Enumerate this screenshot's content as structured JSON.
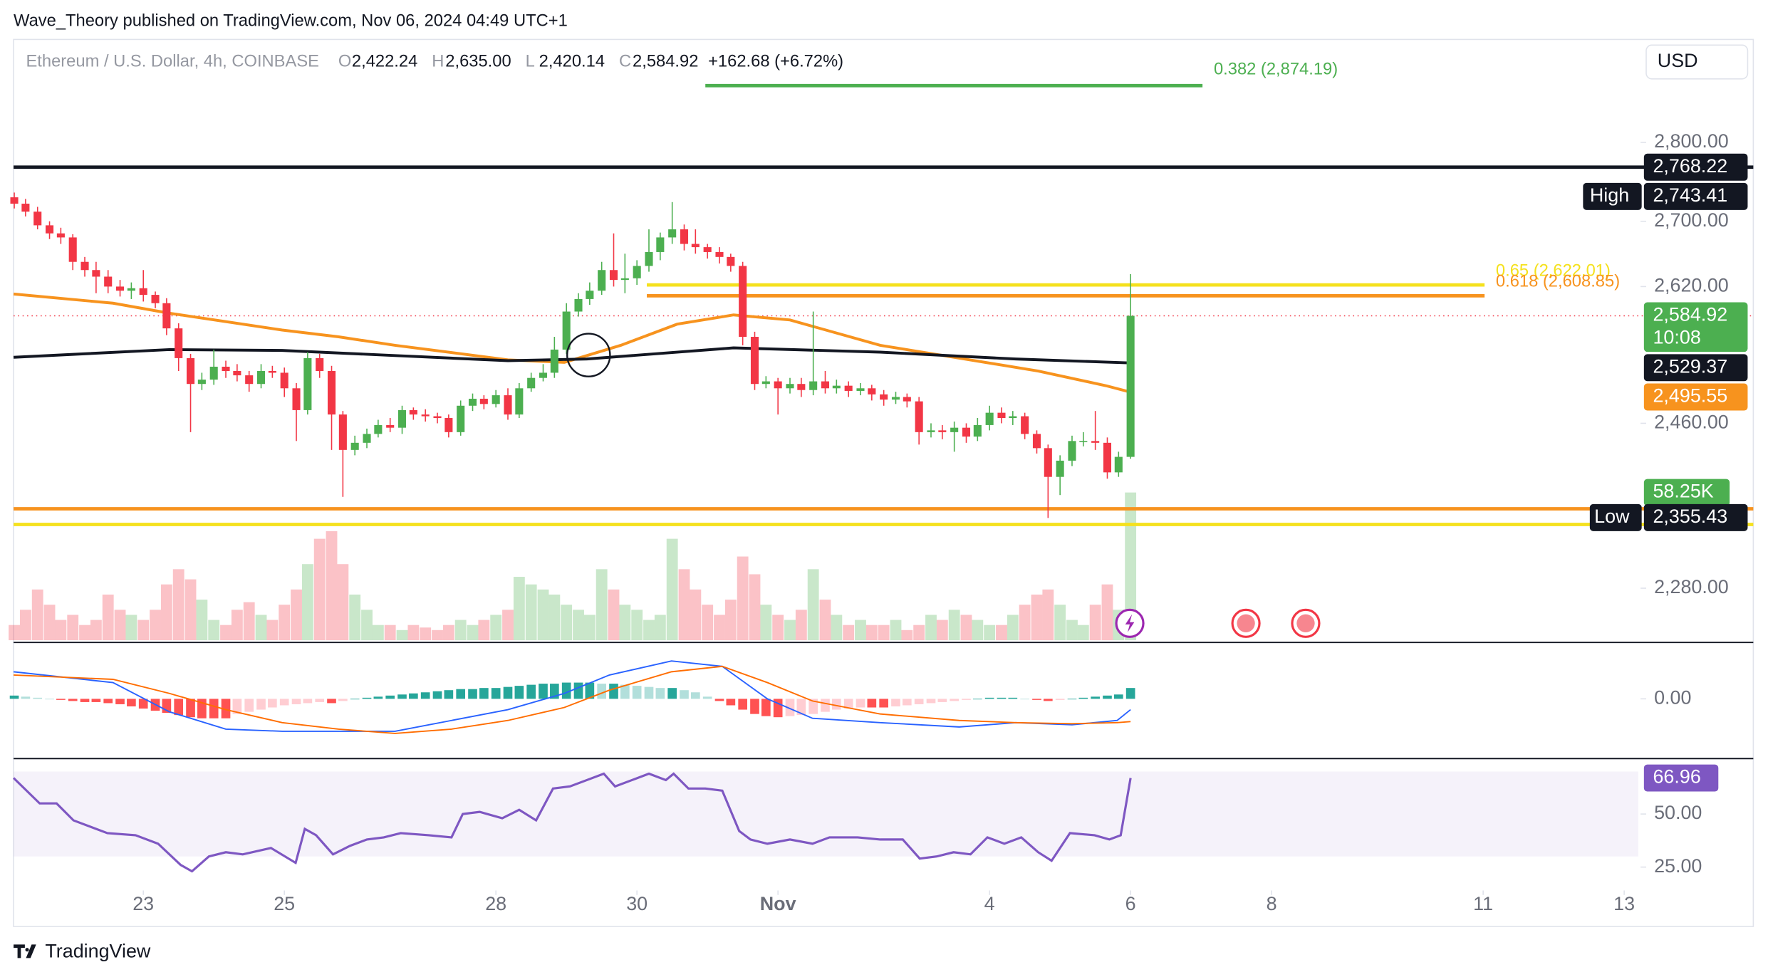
{
  "header": {
    "publisher": "Wave_Theory published on TradingView.com, Nov 06, 2024 04:49 UTC+1",
    "currency": "USD",
    "footer": "TradingView"
  },
  "chart_data": {
    "type": "candlestick",
    "title": "Ethereum / U.S. Dollar, 4h, COINBASE",
    "ohlc_legend": [
      {
        "key": "O",
        "value": "2,422.24"
      },
      {
        "key": "H",
        "value": "2,635.00"
      },
      {
        "key": "L",
        "value": "2,420.14"
      },
      {
        "key": "C",
        "value": "2,584.92"
      }
    ],
    "change": "+162.68 (+6.72%)",
    "up_color": "#4caf50",
    "down_color": "#f23645",
    "log_scale": true,
    "xlim": [
      21.16,
      44.2
    ],
    "xticks": [
      23,
      25,
      28,
      30,
      {
        "value": 32,
        "label": "Nov"
      },
      {
        "value": 35,
        "label": "4"
      },
      {
        "value": 37,
        "label": "6"
      },
      {
        "value": 39,
        "label": "8"
      },
      {
        "value": 42,
        "label": "11"
      },
      {
        "value": 44,
        "label": "13"
      }
    ],
    "ylim": [
      2226,
      2936
    ],
    "yticks": [
      {
        "value": 2800,
        "label": "2,800.00"
      },
      {
        "value": 2700,
        "label": "2,700.00"
      },
      {
        "value": 2620,
        "label": "2,620.00"
      },
      {
        "value": 2460,
        "label": "2,460.00"
      },
      {
        "value": 2280,
        "label": "2,280.00"
      }
    ],
    "x": [
      21.17,
      21.33,
      21.5,
      21.67,
      21.83,
      22,
      22.17,
      22.33,
      22.5,
      22.67,
      22.83,
      23,
      23.17,
      23.33,
      23.5,
      23.67,
      23.83,
      24,
      24.17,
      24.33,
      24.5,
      24.67,
      24.83,
      25,
      25.17,
      25.33,
      25.5,
      25.67,
      25.83,
      26,
      26.17,
      26.33,
      26.5,
      26.67,
      26.83,
      27,
      27.17,
      27.33,
      27.5,
      27.67,
      27.83,
      28,
      28.17,
      28.33,
      28.5,
      28.67,
      28.83,
      29,
      29.17,
      29.33,
      29.5,
      29.67,
      29.83,
      30,
      30.17,
      30.33,
      30.5,
      30.67,
      30.83,
      31,
      31.17,
      31.33,
      31.5,
      31.67,
      31.83,
      32,
      32.17,
      32.33,
      32.5,
      32.67,
      32.83,
      33,
      33.17,
      33.33,
      33.5,
      33.67,
      33.83,
      34,
      34.17,
      34.33,
      34.5,
      34.67,
      34.83,
      35,
      35.17,
      35.33,
      35.5,
      35.67,
      35.83,
      36,
      36.17,
      36.33,
      36.5,
      36.67,
      36.83,
      37
    ],
    "ohlc": [
      [
        2730,
        2736,
        2716,
        2722
      ],
      [
        2722,
        2728,
        2706,
        2712
      ],
      [
        2712,
        2718,
        2690,
        2695
      ],
      [
        2695,
        2700,
        2678,
        2685
      ],
      [
        2685,
        2692,
        2672,
        2680
      ],
      [
        2680,
        2684,
        2640,
        2650
      ],
      [
        2650,
        2656,
        2632,
        2640
      ],
      [
        2640,
        2650,
        2612,
        2632
      ],
      [
        2632,
        2640,
        2612,
        2620
      ],
      [
        2620,
        2628,
        2608,
        2615
      ],
      [
        2615,
        2625,
        2605,
        2618
      ],
      [
        2618,
        2640,
        2602,
        2610
      ],
      [
        2610,
        2614,
        2594,
        2600
      ],
      [
        2600,
        2606,
        2562,
        2570
      ],
      [
        2570,
        2576,
        2520,
        2535
      ],
      [
        2535,
        2540,
        2450,
        2505
      ],
      [
        2505,
        2518,
        2498,
        2510
      ],
      [
        2510,
        2545,
        2504,
        2525
      ],
      [
        2525,
        2532,
        2512,
        2520
      ],
      [
        2520,
        2528,
        2508,
        2515
      ],
      [
        2515,
        2520,
        2496,
        2505
      ],
      [
        2505,
        2528,
        2500,
        2520
      ],
      [
        2520,
        2526,
        2512,
        2518
      ],
      [
        2518,
        2524,
        2490,
        2500
      ],
      [
        2500,
        2506,
        2440,
        2475
      ],
      [
        2475,
        2542,
        2470,
        2535
      ],
      [
        2535,
        2540,
        2512,
        2520
      ],
      [
        2520,
        2526,
        2430,
        2470
      ],
      [
        2470,
        2474,
        2378,
        2430
      ],
      [
        2430,
        2446,
        2424,
        2438
      ],
      [
        2438,
        2454,
        2432,
        2448
      ],
      [
        2448,
        2464,
        2444,
        2458
      ],
      [
        2458,
        2466,
        2450,
        2455
      ],
      [
        2455,
        2480,
        2448,
        2475
      ],
      [
        2475,
        2478,
        2464,
        2470
      ],
      [
        2470,
        2476,
        2462,
        2468
      ],
      [
        2468,
        2472,
        2460,
        2466
      ],
      [
        2466,
        2470,
        2444,
        2450
      ],
      [
        2450,
        2486,
        2446,
        2480
      ],
      [
        2480,
        2494,
        2474,
        2488
      ],
      [
        2488,
        2492,
        2476,
        2482
      ],
      [
        2482,
        2498,
        2478,
        2492
      ],
      [
        2492,
        2500,
        2464,
        2470
      ],
      [
        2470,
        2506,
        2466,
        2500
      ],
      [
        2500,
        2518,
        2496,
        2512
      ],
      [
        2512,
        2528,
        2508,
        2518
      ],
      [
        2518,
        2560,
        2512,
        2545
      ],
      [
        2545,
        2600,
        2540,
        2590
      ],
      [
        2590,
        2612,
        2584,
        2605
      ],
      [
        2605,
        2625,
        2598,
        2615
      ],
      [
        2615,
        2650,
        2610,
        2640
      ],
      [
        2640,
        2685,
        2620,
        2628
      ],
      [
        2628,
        2660,
        2612,
        2630
      ],
      [
        2630,
        2652,
        2622,
        2645
      ],
      [
        2645,
        2690,
        2638,
        2662
      ],
      [
        2662,
        2686,
        2652,
        2680
      ],
      [
        2680,
        2724,
        2672,
        2690
      ],
      [
        2690,
        2696,
        2664,
        2672
      ],
      [
        2672,
        2690,
        2660,
        2668
      ],
      [
        2668,
        2672,
        2654,
        2662
      ],
      [
        2662,
        2668,
        2648,
        2656
      ],
      [
        2656,
        2660,
        2638,
        2645
      ],
      [
        2645,
        2650,
        2550,
        2560
      ],
      [
        2560,
        2566,
        2498,
        2505
      ],
      [
        2505,
        2514,
        2500,
        2508
      ],
      [
        2508,
        2512,
        2470,
        2500
      ],
      [
        2500,
        2512,
        2494,
        2505
      ],
      [
        2505,
        2512,
        2490,
        2498
      ],
      [
        2498,
        2590,
        2492,
        2508
      ],
      [
        2508,
        2520,
        2494,
        2500
      ],
      [
        2500,
        2510,
        2494,
        2503
      ],
      [
        2503,
        2508,
        2490,
        2497
      ],
      [
        2497,
        2506,
        2492,
        2500
      ],
      [
        2500,
        2504,
        2486,
        2493
      ],
      [
        2493,
        2498,
        2480,
        2487
      ],
      [
        2487,
        2496,
        2482,
        2490
      ],
      [
        2490,
        2494,
        2478,
        2485
      ],
      [
        2485,
        2490,
        2436,
        2450
      ],
      [
        2450,
        2460,
        2444,
        2452
      ],
      [
        2452,
        2458,
        2442,
        2450
      ],
      [
        2450,
        2462,
        2428,
        2455
      ],
      [
        2455,
        2460,
        2438,
        2445
      ],
      [
        2445,
        2466,
        2440,
        2458
      ],
      [
        2458,
        2480,
        2452,
        2472
      ],
      [
        2472,
        2478,
        2460,
        2466
      ],
      [
        2466,
        2474,
        2458,
        2468
      ],
      [
        2468,
        2472,
        2442,
        2448
      ],
      [
        2448,
        2452,
        2426,
        2432
      ],
      [
        2432,
        2436,
        2355,
        2400
      ],
      [
        2400,
        2424,
        2380,
        2418
      ],
      [
        2418,
        2446,
        2412,
        2440
      ],
      [
        2440,
        2450,
        2434,
        2440
      ],
      [
        2440,
        2474,
        2430,
        2438
      ],
      [
        2438,
        2444,
        2398,
        2405
      ],
      [
        2405,
        2428,
        2400,
        2422.24
      ],
      [
        2422.24,
        2635,
        2420.14,
        2584.92
      ]
    ],
    "overlays": [
      {
        "color": "#f7931e",
        "x": [
          21.16,
          22.57,
          23.37,
          24.97,
          25.77,
          26.57,
          28.17,
          28.97,
          29.77,
          30.57,
          31.37,
          32.17,
          33.45,
          34.57,
          35.69,
          36.65,
          37
        ],
        "values": [
          2611,
          2600,
          2588,
          2568,
          2560,
          2550,
          2533,
          2530,
          2550,
          2575,
          2586,
          2580,
          2550,
          2535,
          2520,
          2503,
          2495.55
        ]
      },
      {
        "color": "#131722",
        "x": [
          21.16,
          23.37,
          24.97,
          26.57,
          28.17,
          29.29,
          31.37,
          33.45,
          35.37,
          37
        ],
        "values": [
          2536,
          2545,
          2544,
          2538,
          2532,
          2534,
          2547,
          2542,
          2534,
          2529.37
        ]
      }
    ],
    "levels": [
      {
        "value": 2874.19,
        "label": "0.382 (2,874.19)",
        "color": "#4caf50",
        "x": [
          30.97,
          38.02
        ]
      },
      {
        "value": 2768.22,
        "color": "#131722"
      },
      {
        "value": 2622.01,
        "label": "0.65 (2,622.01)",
        "color": "#f5e11d",
        "x": [
          30.14,
          42.02
        ]
      },
      {
        "value": 2608.85,
        "label": "0.618 (2,608.85)",
        "color": "#f7931e",
        "x": [
          30.14,
          42.02
        ]
      },
      {
        "value": 2584.92,
        "color": "#f23645",
        "dashed": true
      },
      {
        "value": 2365,
        "color": "#f7931e"
      },
      {
        "value": 2348,
        "color": "#f5e11d"
      }
    ],
    "price_labels": [
      {
        "value": 2768.22,
        "label": "2,768.22",
        "color": "#131722"
      },
      {
        "value": 2743.41,
        "label": "2,743.41",
        "tag": "High",
        "color": "#131722"
      },
      {
        "value": 2584.92,
        "label": "2,584.92",
        "countdown": "10:08",
        "color": "#4caf50"
      },
      {
        "value": 2529.37,
        "label": "2,529.37",
        "color": "#131722"
      },
      {
        "value": 2495.55,
        "label": "2,495.55",
        "color": "#f7931e"
      },
      {
        "value": 2355.43,
        "label": "2,355.43",
        "tag": "Low",
        "color": "#131722"
      }
    ],
    "volume": {
      "ylim": [
        0,
        100
      ],
      "value_label": "58.25K",
      "values": [
        6,
        12,
        20,
        14,
        8,
        10,
        6,
        8,
        18,
        12,
        10,
        8,
        12,
        22,
        28,
        24,
        16,
        8,
        6,
        12,
        15,
        10,
        8,
        14,
        20,
        30,
        40,
        43,
        30,
        18,
        12,
        6,
        6,
        4,
        6,
        5,
        4,
        6,
        8,
        6,
        8,
        10,
        12,
        25,
        22,
        20,
        18,
        14,
        12,
        10,
        28,
        20,
        14,
        12,
        8,
        10,
        40,
        28,
        20,
        14,
        10,
        16,
        33,
        26,
        14,
        10,
        8,
        12,
        28,
        16,
        10,
        6,
        8,
        6,
        6,
        8,
        4,
        6,
        10,
        8,
        12,
        10,
        8,
        6,
        6,
        10,
        14,
        18,
        20,
        14,
        8,
        6,
        14,
        22,
        12,
        58.25
      ]
    },
    "macd": {
      "ylim": [
        -50,
        50
      ],
      "yticks": [
        {
          "value": 0,
          "label": "0.00"
        }
      ],
      "macd_color": "#2962ff",
      "signal_color": "#ff6d00",
      "x": [
        21.16,
        22.57,
        23.37,
        24.17,
        24.97,
        25.77,
        26.57,
        27.37,
        28.17,
        28.97,
        29.61,
        30.49,
        31.21,
        31.85,
        32.49,
        33.45,
        34.57,
        35.37,
        36.17,
        36.81,
        37
      ],
      "macd": [
        25,
        15,
        -12,
        -28,
        -30,
        -30,
        -30,
        -20,
        -10,
        5,
        22,
        35,
        30,
        0,
        -18,
        -22,
        -26,
        -22,
        -24,
        -20,
        -10
      ],
      "signal": [
        22,
        18,
        5,
        -10,
        -22,
        -28,
        -32,
        -28,
        -20,
        -8,
        8,
        25,
        30,
        15,
        -2,
        -14,
        -20,
        -22,
        -23,
        -22,
        -21
      ],
      "histogram": [
        3,
        2,
        1,
        0,
        -1,
        -2,
        -3,
        -3,
        -4,
        -5,
        -7,
        -9,
        -11,
        -13,
        -15,
        -17,
        -18,
        -18,
        -18,
        -14,
        -12,
        -10,
        -8,
        -6,
        -5,
        -4,
        -3,
        -4,
        -2,
        0,
        1,
        2,
        3,
        4,
        5,
        6,
        7,
        8,
        9,
        9,
        10,
        10,
        11,
        12,
        13,
        14,
        14,
        15,
        15,
        15,
        14,
        14,
        13,
        12,
        11,
        10,
        10,
        8,
        6,
        2,
        -2,
        -6,
        -10,
        -14,
        -16,
        -17,
        -16,
        -15,
        -14,
        -12,
        -10,
        -9,
        -8,
        -8,
        -8,
        -7,
        -6,
        -5,
        -4,
        -3,
        -2,
        -1,
        0,
        1,
        1,
        1,
        0,
        -1,
        -2,
        -1,
        0,
        1,
        2,
        3,
        4,
        10
      ]
    },
    "rsi": {
      "ylim": [
        14,
        74
      ],
      "band": [
        30,
        70
      ],
      "color": "#7e57c2",
      "yticks": [
        {
          "value": 50,
          "label": "50.00"
        },
        {
          "value": 25,
          "label": "25.00"
        }
      ],
      "x": [
        21.16,
        21.53,
        21.77,
        22.01,
        22.25,
        22.49,
        22.89,
        23.21,
        23.53,
        23.69,
        23.93,
        24.17,
        24.41,
        24.81,
        25.16,
        25.29,
        25.45,
        25.69,
        25.93,
        26.17,
        26.41,
        26.65,
        27.05,
        27.37,
        27.53,
        27.77,
        28.09,
        28.33,
        28.57,
        28.81,
        29.05,
        29.29,
        29.53,
        29.69,
        29.93,
        30.17,
        30.41,
        30.52,
        30.73,
        30.97,
        31.21,
        31.45,
        31.61,
        31.85,
        32.17,
        32.49,
        32.73,
        33.13,
        33.45,
        33.77,
        34.01,
        34.25,
        34.49,
        34.73,
        34.97,
        35.21,
        35.45,
        35.69,
        35.88,
        36.14,
        36.49,
        36.7,
        36.86,
        37
      ],
      "values": [
        67,
        55,
        55,
        47,
        44,
        41,
        40,
        36,
        26,
        23,
        30,
        32,
        31,
        34,
        27,
        43,
        40,
        31,
        35,
        38,
        39,
        41,
        40,
        39,
        50,
        51,
        48,
        52,
        47,
        62,
        63,
        66,
        69,
        63,
        66,
        69,
        66,
        69,
        62,
        62,
        61,
        42,
        38,
        36,
        38,
        36,
        39,
        39,
        38,
        38,
        29,
        30,
        32,
        31,
        39,
        36,
        39,
        32,
        28,
        41,
        40,
        38,
        40,
        66.96
      ]
    }
  }
}
